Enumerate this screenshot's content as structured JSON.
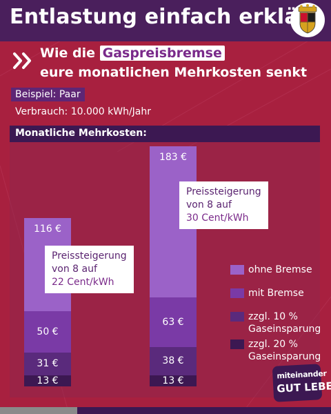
{
  "header": {
    "title": "Entlastung einfach erklärt"
  },
  "subtitle": {
    "prefix": "Wie die",
    "highlight": "Gaspreisbremse",
    "line2": "eure monatlichen Mehrkosten senkt"
  },
  "example_label": "Beispiel: Paar",
  "usage_label": "Verbrauch: 10.000 kWh/Jahr",
  "chart_title": "Monatliche Mehrkosten:",
  "callouts": [
    {
      "line1": "Preissteigerung",
      "line2": "von 8 auf",
      "line3": "22 Cent/kWh"
    },
    {
      "line1": "Preissteigerung",
      "line2": "von 8 auf",
      "line3": "30 Cent/kWh"
    }
  ],
  "chart_data": {
    "type": "bar",
    "title": "Monatliche Mehrkosten:",
    "categories": [
      "Preissteigerung von 8 auf 22 Cent/kWh",
      "Preissteigerung von 8 auf 30 Cent/kWh"
    ],
    "series": [
      {
        "name": "ohne Bremse",
        "values": [
          116,
          183
        ],
        "labels": [
          "116 €",
          "183 €"
        ],
        "color": "#9b62c8"
      },
      {
        "name": "mit Bremse",
        "values": [
          50,
          63
        ],
        "labels": [
          "50 €",
          "63 €"
        ],
        "color": "#7a3aa6"
      },
      {
        "name": "zzgl. 10 % Gaseinsparung",
        "values": [
          31,
          38
        ],
        "labels": [
          "31 €",
          "38 €"
        ],
        "color": "#5a2a7c"
      },
      {
        "name": "zzgl. 20 % Gaseinsparung",
        "values": [
          13,
          13
        ],
        "labels": [
          "13 €",
          "13 €"
        ],
        "color": "#3c1852"
      }
    ]
  },
  "legend": [
    {
      "line1": "ohne Bremse",
      "line2": ""
    },
    {
      "line1": "mit Bremse",
      "line2": ""
    },
    {
      "line1": "zzgl. 10 %",
      "line2": "Gaseinsparung"
    },
    {
      "line1": "zzgl. 20 %",
      "line2": "Gaseinsparung"
    }
  ],
  "badge": {
    "line1": "miteinander",
    "line2": "GUT LEBEN"
  },
  "colors": {
    "background": "#a8203f",
    "header": "#4a1f5c",
    "accent": "#7a2a8a"
  }
}
